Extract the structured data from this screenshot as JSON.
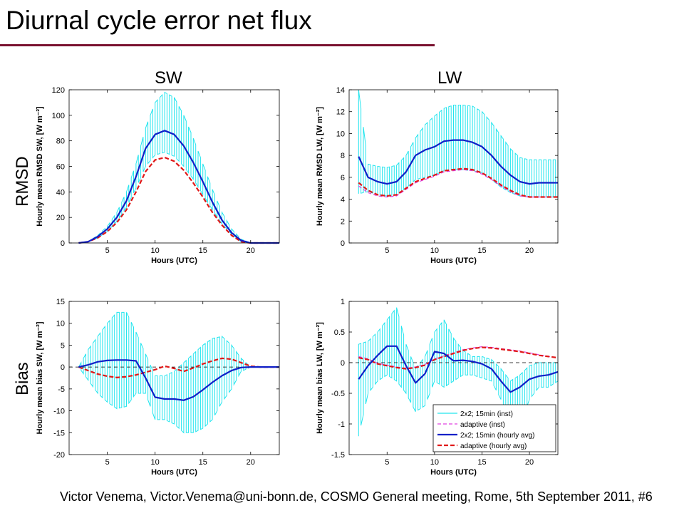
{
  "slide": {
    "title": "Diurnal cycle error net flux",
    "col_labels": [
      "SW",
      "LW"
    ],
    "row_labels": [
      "RMSD",
      "Bias"
    ],
    "footer": "Victor Venema, Victor.Venema@uni-bonn.de, COSMO General meeting, Rome, 5th September 2011, #6"
  },
  "colors": {
    "accent_rule": "#7a1230",
    "inst_2x2": "#22e5ee",
    "adaptive_inst": "#e040e0",
    "hourly_2x2": "#1020c8",
    "adaptive_hourly": "#e01818"
  },
  "chart_data": [
    {
      "id": "sw-rmsd",
      "type": "line",
      "xlabel": "Hours (UTC)",
      "ylabel": "Hourly mean RMSD SW, [W m⁻²]",
      "xlim": [
        1,
        23
      ],
      "ylim": [
        0,
        120
      ],
      "xticks": [
        5,
        10,
        15,
        20
      ],
      "yticks": [
        0,
        20,
        40,
        60,
        80,
        100,
        120
      ],
      "x": [
        2,
        3,
        4,
        5,
        6,
        7,
        8,
        9,
        10,
        11,
        12,
        13,
        14,
        15,
        16,
        17,
        18,
        19,
        20,
        21,
        22,
        23
      ],
      "series": [
        {
          "name": "2x2; 15min (hourly avg)",
          "values": [
            0,
            1,
            5,
            11,
            20,
            33,
            52,
            74,
            85,
            88,
            85,
            76,
            63,
            48,
            32,
            18,
            8,
            2,
            0,
            0,
            0,
            0
          ]
        },
        {
          "name": "adaptive (hourly avg)",
          "values": [
            0,
            1,
            4,
            9,
            16,
            26,
            40,
            56,
            65,
            67,
            64,
            57,
            47,
            36,
            24,
            14,
            6,
            1,
            0,
            0,
            0,
            0
          ]
        },
        {
          "name": "2x2; 15min (inst) upper",
          "values": [
            0,
            1,
            6,
            13,
            24,
            40,
            62,
            90,
            110,
            118,
            114,
            100,
            82,
            62,
            42,
            24,
            11,
            3,
            0,
            0,
            0,
            0
          ]
        },
        {
          "name": "2x2; 15min (inst) lower",
          "values": [
            0,
            1,
            4,
            9,
            17,
            28,
            43,
            60,
            69,
            71,
            68,
            60,
            50,
            38,
            26,
            15,
            7,
            1,
            0,
            0,
            0,
            0
          ]
        }
      ]
    },
    {
      "id": "lw-rmsd",
      "type": "line",
      "xlabel": "Hours (UTC)",
      "ylabel": "Hourly mean RMSD LW, [W m⁻²]",
      "xlim": [
        1,
        23
      ],
      "ylim": [
        0,
        14
      ],
      "xticks": [
        5,
        10,
        15,
        20
      ],
      "yticks": [
        0,
        2,
        4,
        6,
        8,
        10,
        12,
        14
      ],
      "x": [
        2,
        3,
        4,
        5,
        6,
        7,
        8,
        9,
        10,
        11,
        12,
        13,
        14,
        15,
        16,
        17,
        18,
        19,
        20,
        21,
        22,
        23
      ],
      "series": [
        {
          "name": "2x2; 15min (hourly avg)",
          "values": [
            7.9,
            6.0,
            5.6,
            5.4,
            5.6,
            6.5,
            8.0,
            8.5,
            8.8,
            9.3,
            9.4,
            9.4,
            9.2,
            8.8,
            8.0,
            7.0,
            6.2,
            5.6,
            5.4,
            5.5,
            5.5,
            5.5
          ]
        },
        {
          "name": "adaptive (hourly avg)",
          "values": [
            5.5,
            4.8,
            4.4,
            4.3,
            4.4,
            5.0,
            5.6,
            5.9,
            6.2,
            6.6,
            6.7,
            6.8,
            6.7,
            6.4,
            5.9,
            5.3,
            4.8,
            4.4,
            4.2,
            4.2,
            4.2,
            4.2
          ]
        },
        {
          "name": "adaptive (inst)",
          "values": [
            5.2,
            4.6,
            4.3,
            4.2,
            4.3,
            4.9,
            5.5,
            5.8,
            6.1,
            6.5,
            6.6,
            6.7,
            6.6,
            6.3,
            5.8,
            5.2,
            4.7,
            4.3,
            4.2,
            4.2,
            4.2,
            4.2
          ]
        },
        {
          "name": "2x2; 15min (inst) upper",
          "values": [
            14,
            7.2,
            7.0,
            6.9,
            7.1,
            8.0,
            9.6,
            10.8,
            11.6,
            12.3,
            12.6,
            12.6,
            12.5,
            12.0,
            11.0,
            9.8,
            8.6,
            7.8,
            7.6,
            7.6,
            7.6,
            7.6
          ]
        },
        {
          "name": "2x2; 15min (inst) lower",
          "values": [
            4.5,
            4.7,
            4.4,
            4.3,
            4.4,
            5.0,
            5.8,
            6.0,
            6.2,
            6.6,
            6.7,
            6.7,
            6.6,
            6.4,
            5.8,
            5.1,
            4.6,
            4.3,
            4.2,
            4.2,
            4.2,
            4.2
          ]
        }
      ]
    },
    {
      "id": "sw-bias",
      "type": "line",
      "xlabel": "Hours (UTC)",
      "ylabel": "Hourly mean bias SW, [W m⁻²]",
      "xlim": [
        1,
        23
      ],
      "ylim": [
        -20,
        15
      ],
      "xticks": [
        5,
        10,
        15,
        20
      ],
      "yticks": [
        -20,
        -15,
        -10,
        -5,
        0,
        5,
        10,
        15
      ],
      "x": [
        2,
        3,
        4,
        5,
        6,
        7,
        8,
        9,
        10,
        11,
        12,
        13,
        14,
        15,
        16,
        17,
        18,
        19,
        20,
        21,
        22,
        23
      ],
      "series": [
        {
          "name": "2x2; 15min (hourly avg)",
          "values": [
            0,
            0.5,
            1.2,
            1.5,
            1.6,
            1.6,
            1.4,
            -2.5,
            -6.9,
            -7.3,
            -7.3,
            -7.6,
            -6.8,
            -5.2,
            -3.5,
            -2.0,
            -0.8,
            -0.1,
            0,
            0,
            0,
            0
          ]
        },
        {
          "name": "adaptive (hourly avg)",
          "values": [
            0,
            -0.8,
            -1.6,
            -2.1,
            -2.4,
            -2.2,
            -1.8,
            -1.2,
            -0.6,
            0.2,
            -0.3,
            -1.0,
            -0.2,
            0.7,
            1.4,
            2.0,
            1.8,
            1.0,
            0.2,
            0,
            0,
            0
          ]
        },
        {
          "name": "2x2; 15min (inst) upper",
          "values": [
            0,
            4,
            7,
            10,
            12.5,
            12.5,
            8,
            3,
            -2,
            -2,
            -1,
            1,
            3,
            5,
            6.5,
            7,
            5,
            2,
            0,
            0,
            0,
            0
          ]
        },
        {
          "name": "2x2; 15min (inst) lower",
          "values": [
            0,
            -3,
            -6,
            -8,
            -9.5,
            -9,
            -6,
            -6,
            -12,
            -12,
            -13,
            -15,
            -15,
            -14,
            -12,
            -8,
            -5,
            -1,
            0,
            0,
            0,
            0
          ]
        }
      ]
    },
    {
      "id": "lw-bias",
      "type": "line",
      "xlabel": "Hours (UTC)",
      "ylabel": "Hourly mean bias LW, [W m⁻²]",
      "xlim": [
        1,
        23
      ],
      "ylim": [
        -1.5,
        1
      ],
      "xticks": [
        5,
        10,
        15,
        20
      ],
      "yticks": [
        -1.5,
        -1,
        -0.5,
        0,
        0.5,
        1
      ],
      "x": [
        2,
        3,
        4,
        5,
        6,
        7,
        8,
        9,
        10,
        11,
        12,
        13,
        14,
        15,
        16,
        17,
        18,
        19,
        20,
        21,
        22,
        23
      ],
      "series": [
        {
          "name": "2x2; 15min (hourly avg)",
          "values": [
            -0.27,
            -0.05,
            0.12,
            0.27,
            0.27,
            -0.05,
            -0.33,
            -0.18,
            0.18,
            0.15,
            0.03,
            0.04,
            0.02,
            -0.02,
            -0.1,
            -0.3,
            -0.48,
            -0.4,
            -0.27,
            -0.22,
            -0.2,
            -0.15
          ]
        },
        {
          "name": "adaptive (hourly avg)",
          "values": [
            0.08,
            0.05,
            -0.02,
            -0.05,
            -0.08,
            -0.1,
            -0.08,
            -0.04,
            0.05,
            0.1,
            0.15,
            0.2,
            0.23,
            0.25,
            0.24,
            0.22,
            0.2,
            0.18,
            0.15,
            0.12,
            0.1,
            0.08
          ]
        },
        {
          "name": "adaptive (inst)",
          "values": [
            0.1,
            0.06,
            -0.01,
            -0.04,
            -0.07,
            -0.09,
            -0.07,
            -0.03,
            0.06,
            0.11,
            0.16,
            0.21,
            0.24,
            0.26,
            0.25,
            0.23,
            0.21,
            0.19,
            0.16,
            0.13,
            0.1,
            0.08
          ]
        },
        {
          "name": "2x2; 15min (inst) upper",
          "values": [
            0.3,
            0.35,
            0.5,
            0.7,
            0.9,
            0.3,
            -0.1,
            0.1,
            0.5,
            0.7,
            0.4,
            0.2,
            0.1,
            0.1,
            0.05,
            -0.1,
            -0.3,
            -0.2,
            -0.05,
            0.0,
            0.0,
            0.0
          ]
        },
        {
          "name": "2x2; 15min (inst) lower",
          "values": [
            -1.2,
            -0.5,
            -0.3,
            -0.2,
            -0.3,
            -0.5,
            -0.8,
            -0.7,
            -0.3,
            -0.4,
            -0.3,
            -0.2,
            -0.2,
            -0.25,
            -0.3,
            -0.6,
            -0.9,
            -1.05,
            -0.6,
            -0.4,
            -0.4,
            -0.3
          ]
        }
      ],
      "legend": {
        "placement": "bottom-right",
        "entries": [
          "2x2; 15min (inst)",
          "adaptive (inst)",
          "2x2; 15min (hourly avg)",
          "adaptive (hourly avg)"
        ]
      }
    }
  ]
}
